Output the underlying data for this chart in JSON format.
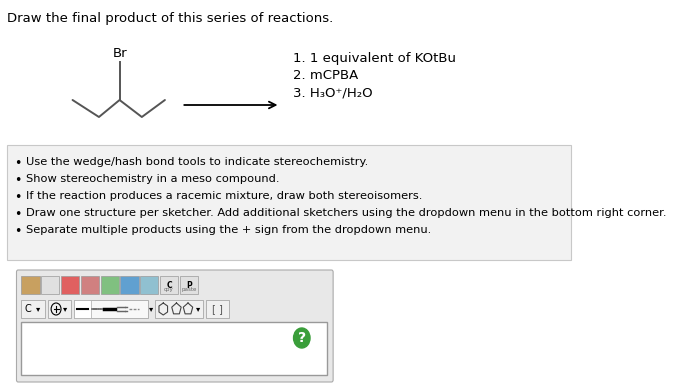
{
  "title": "Draw the final product of this series of reactions.",
  "title_fontsize": 9.5,
  "bg_color": "#ffffff",
  "reaction_steps": [
    "1. 1 equivalent of KOtBu",
    "2. mCPBA",
    "3. H₃O⁺/H₂O"
  ],
  "bullet_points": [
    "Use the wedge/hash bond tools to indicate stereochemistry.",
    "Show stereochemistry in a meso compound.",
    "If the reaction produces a racemic mixture, draw both stereoisomers.",
    "Draw one structure per sketcher. Add additional sketchers using the dropdown menu in the bottom right corner.",
    "Separate multiple products using the + sign from the dropdown menu."
  ],
  "bullet_box_bg": "#f2f2f2",
  "sketcher_box_bg": "#e8e8e8",
  "text_color": "#000000",
  "mol_color": "#555555",
  "arrow_color": "#000000",
  "toolbar_bg": "#e8e8e8",
  "icon_bg": "#f5f5f5"
}
